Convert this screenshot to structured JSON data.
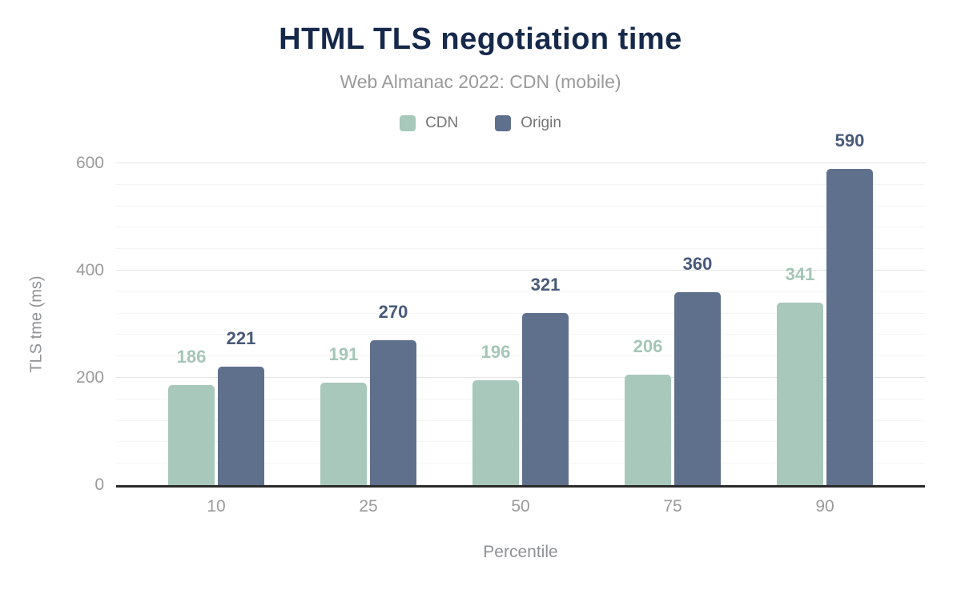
{
  "page": {
    "title": "HTML TLS negotiation time",
    "subtitle": "Web Almanac 2022: CDN (mobile)"
  },
  "chart_data": {
    "type": "bar",
    "title": "HTML TLS negotiation time",
    "subtitle": "Web Almanac 2022: CDN (mobile)",
    "categories": [
      "10",
      "25",
      "50",
      "75",
      "90"
    ],
    "series": [
      {
        "name": "CDN",
        "values": [
          186,
          191,
          196,
          206,
          341
        ],
        "bar_color": "#a7c8ba",
        "label_color": "#a4c6b7"
      },
      {
        "name": "Origin",
        "values": [
          221,
          270,
          321,
          360,
          590
        ],
        "bar_color": "#5f708c",
        "label_color": "#48597a"
      }
    ],
    "xlabel": "Percentile",
    "ylabel": "TLS tme (ms)",
    "ylim": [
      0,
      600
    ],
    "yticks": [
      0,
      200,
      400,
      600
    ],
    "minor_gridline_step": 40,
    "grid": true,
    "legend_position": "top",
    "value_labels": true
  },
  "colors": {
    "title_text": "#16294b",
    "subtitle_text": "#9a9a9a",
    "legend_text": "#757575",
    "axis_tick_text": "#9a9a9a",
    "axis_title_text": "#8f9194",
    "gridline_minor": "#f4f4f4",
    "gridline_major": "#e3e3e3",
    "baseline": "#2b2b2b",
    "background": "#ffffff"
  }
}
